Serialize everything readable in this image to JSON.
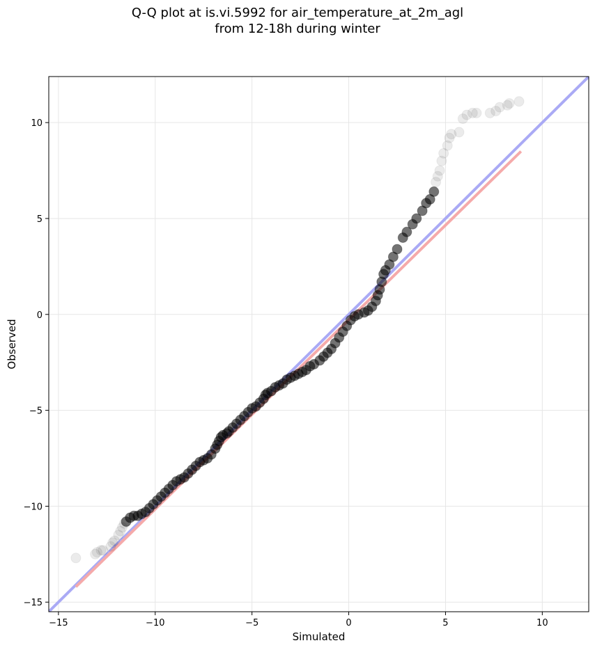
{
  "chart_data": {
    "type": "scatter",
    "title": "Q-Q plot at is.vi.5992 for air_temperature_at_2m_agl",
    "subtitle": "from 12-18h during winter",
    "xlabel": "Simulated",
    "ylabel": "Observed",
    "xlim": [
      -15.5,
      12.4
    ],
    "ylim": [
      -15.5,
      12.4
    ],
    "xticks": [
      -15,
      -10,
      -5,
      0,
      5,
      10
    ],
    "yticks": [
      -15,
      -10,
      -5,
      0,
      5,
      10
    ],
    "xtick_labels": [
      "−15",
      "−10",
      "−5",
      "0",
      "5",
      "10"
    ],
    "ytick_labels": [
      "−15",
      "−10",
      "−5",
      "0",
      "5",
      "10"
    ],
    "grid": true,
    "reference_line": {
      "color": "#aaaaf5",
      "from": [
        -15.5,
        -15.5
      ],
      "to": [
        12.4,
        12.4
      ]
    },
    "fit_line": {
      "color": "#f5aaaa",
      "from": [
        -14.1,
        -14.2
      ],
      "to": [
        8.9,
        8.5
      ]
    },
    "points_color": "#000000",
    "points": [
      [
        -14.1,
        -12.7
      ],
      [
        -13.1,
        -12.5
      ],
      [
        -13.0,
        -12.4
      ],
      [
        -12.8,
        -12.3
      ],
      [
        -12.7,
        -12.3
      ],
      [
        -12.3,
        -12.1
      ],
      [
        -12.2,
        -11.9
      ],
      [
        -12.1,
        -11.8
      ],
      [
        -11.9,
        -11.5
      ],
      [
        -11.8,
        -11.3
      ],
      [
        -11.7,
        -11.1
      ],
      [
        -11.6,
        -10.9
      ],
      [
        -11.5,
        -10.8
      ],
      [
        -11.3,
        -10.6
      ],
      [
        -11.1,
        -10.5
      ],
      [
        -10.9,
        -10.5
      ],
      [
        -10.7,
        -10.4
      ],
      [
        -10.5,
        -10.3
      ],
      [
        -10.3,
        -10.1
      ],
      [
        -10.1,
        -9.9
      ],
      [
        -9.9,
        -9.7
      ],
      [
        -9.7,
        -9.5
      ],
      [
        -9.5,
        -9.3
      ],
      [
        -9.3,
        -9.1
      ],
      [
        -9.1,
        -8.9
      ],
      [
        -8.9,
        -8.7
      ],
      [
        -8.7,
        -8.6
      ],
      [
        -8.5,
        -8.5
      ],
      [
        -8.3,
        -8.3
      ],
      [
        -8.1,
        -8.1
      ],
      [
        -7.9,
        -7.9
      ],
      [
        -7.7,
        -7.7
      ],
      [
        -7.5,
        -7.6
      ],
      [
        -7.3,
        -7.5
      ],
      [
        -7.1,
        -7.3
      ],
      [
        -6.9,
        -7.0
      ],
      [
        -6.8,
        -6.8
      ],
      [
        -6.7,
        -6.6
      ],
      [
        -6.6,
        -6.4
      ],
      [
        -6.5,
        -6.3
      ],
      [
        -6.3,
        -6.2
      ],
      [
        -6.2,
        -6.1
      ],
      [
        -6.0,
        -5.9
      ],
      [
        -5.8,
        -5.7
      ],
      [
        -5.6,
        -5.5
      ],
      [
        -5.4,
        -5.3
      ],
      [
        -5.2,
        -5.1
      ],
      [
        -5.0,
        -4.9
      ],
      [
        -4.8,
        -4.8
      ],
      [
        -4.6,
        -4.6
      ],
      [
        -4.4,
        -4.4
      ],
      [
        -4.3,
        -4.2
      ],
      [
        -4.2,
        -4.1
      ],
      [
        -4.0,
        -4.0
      ],
      [
        -3.8,
        -3.8
      ],
      [
        -3.6,
        -3.7
      ],
      [
        -3.4,
        -3.6
      ],
      [
        -3.2,
        -3.4
      ],
      [
        -3.0,
        -3.3
      ],
      [
        -2.8,
        -3.2
      ],
      [
        -2.6,
        -3.1
      ],
      [
        -2.4,
        -3.0
      ],
      [
        -2.2,
        -2.9
      ],
      [
        -2.0,
        -2.7
      ],
      [
        -1.8,
        -2.6
      ],
      [
        -1.5,
        -2.4
      ],
      [
        -1.3,
        -2.2
      ],
      [
        -1.1,
        -2.0
      ],
      [
        -0.9,
        -1.8
      ],
      [
        -0.7,
        -1.5
      ],
      [
        -0.5,
        -1.2
      ],
      [
        -0.3,
        -0.9
      ],
      [
        -0.1,
        -0.6
      ],
      [
        0.1,
        -0.3
      ],
      [
        0.3,
        -0.1
      ],
      [
        0.5,
        0.0
      ],
      [
        0.8,
        0.1
      ],
      [
        1.0,
        0.2
      ],
      [
        1.2,
        0.4
      ],
      [
        1.4,
        0.7
      ],
      [
        1.5,
        1.0
      ],
      [
        1.6,
        1.3
      ],
      [
        1.7,
        1.7
      ],
      [
        1.8,
        2.1
      ],
      [
        1.9,
        2.3
      ],
      [
        2.1,
        2.6
      ],
      [
        2.3,
        3.0
      ],
      [
        2.5,
        3.4
      ],
      [
        2.8,
        4.0
      ],
      [
        3.0,
        4.3
      ],
      [
        3.3,
        4.7
      ],
      [
        3.5,
        5.0
      ],
      [
        3.8,
        5.4
      ],
      [
        4.0,
        5.8
      ],
      [
        4.2,
        6.0
      ],
      [
        4.4,
        6.4
      ],
      [
        4.5,
        6.9
      ],
      [
        4.6,
        7.2
      ],
      [
        4.7,
        7.5
      ],
      [
        4.8,
        8.0
      ],
      [
        4.9,
        8.4
      ],
      [
        5.1,
        8.8
      ],
      [
        5.2,
        9.2
      ],
      [
        5.3,
        9.4
      ],
      [
        5.7,
        9.5
      ],
      [
        5.9,
        10.2
      ],
      [
        6.1,
        10.4
      ],
      [
        6.4,
        10.5
      ],
      [
        6.6,
        10.5
      ],
      [
        7.3,
        10.5
      ],
      [
        7.6,
        10.6
      ],
      [
        7.8,
        10.8
      ],
      [
        8.2,
        10.9
      ],
      [
        8.3,
        11.0
      ],
      [
        8.8,
        11.1
      ]
    ]
  }
}
